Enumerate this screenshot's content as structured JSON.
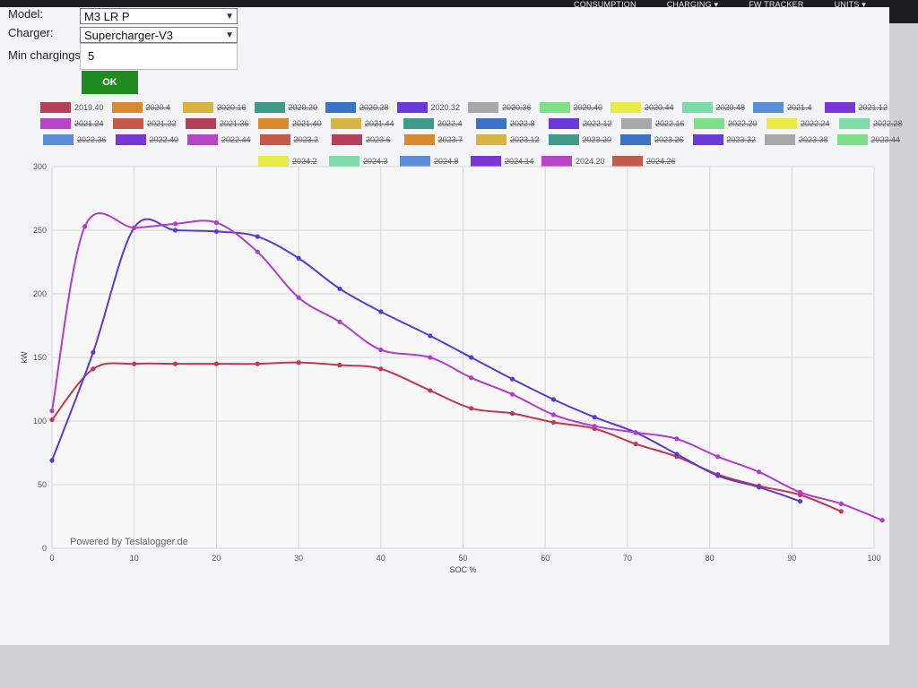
{
  "nav": [
    "CONSUMPTION",
    "CHARGING ▾",
    "FW TRACKER",
    "UNITS ▾"
  ],
  "form": {
    "model_label": "Model:",
    "model_value": "M3 LR P",
    "charger_label": "Charger:",
    "charger_value": "Supercharger-V3",
    "min_label": "Min chargings",
    "min_value": "5",
    "ok_label": "OK"
  },
  "legend": [
    {
      "label": "2019.40",
      "color": "#b5405a",
      "on": true
    },
    {
      "label": "2020.4",
      "color": "#d98a2e",
      "on": false
    },
    {
      "label": "2020.16",
      "color": "#d8b440",
      "on": false
    },
    {
      "label": "2020.20",
      "color": "#3f9a8a",
      "on": false
    },
    {
      "label": "2020.28",
      "color": "#3d73c4",
      "on": false
    },
    {
      "label": "2020.32",
      "color": "#6a3ad8",
      "on": true
    },
    {
      "label": "2020.36",
      "color": "#a8a8a8",
      "on": false
    },
    {
      "label": "2020.40",
      "color": "#7fe08a",
      "on": false
    },
    {
      "label": "2020.44",
      "color": "#eaea45",
      "on": false
    },
    {
      "label": "2020.48",
      "color": "#7ddca8",
      "on": false
    },
    {
      "label": "2021.4",
      "color": "#5a8ed8",
      "on": false
    },
    {
      "label": "2021.12",
      "color": "#7a35d8",
      "on": false
    },
    {
      "label": "2021.24",
      "color": "#b845c8",
      "on": false
    },
    {
      "label": "2021.32",
      "color": "#c65a4a",
      "on": false
    },
    {
      "label": "2021.36",
      "color": "#b5405a",
      "on": false
    },
    {
      "label": "2021.40",
      "color": "#d98a2e",
      "on": false
    },
    {
      "label": "2021.44",
      "color": "#d8b440",
      "on": false
    },
    {
      "label": "2022.4",
      "color": "#3f9a8a",
      "on": false
    },
    {
      "label": "2022.8",
      "color": "#3d73c4",
      "on": false
    },
    {
      "label": "2022.12",
      "color": "#6a3ad8",
      "on": false
    },
    {
      "label": "2022.16",
      "color": "#a8a8a8",
      "on": false
    },
    {
      "label": "2022.20",
      "color": "#7fe08a",
      "on": false
    },
    {
      "label": "2022.24",
      "color": "#eaea45",
      "on": false
    },
    {
      "label": "2022.28",
      "color": "#7ddca8",
      "on": false
    },
    {
      "label": "2022.36",
      "color": "#5a8ed8",
      "on": false
    },
    {
      "label": "2022.40",
      "color": "#7a35d8",
      "on": false
    },
    {
      "label": "2022.44",
      "color": "#b845c8",
      "on": false
    },
    {
      "label": "2023.2",
      "color": "#c65a4a",
      "on": false
    },
    {
      "label": "2023.6",
      "color": "#b5405a",
      "on": false
    },
    {
      "label": "2023.7",
      "color": "#d98a2e",
      "on": false
    },
    {
      "label": "2023.12",
      "color": "#d8b440",
      "on": false
    },
    {
      "label": "2023.20",
      "color": "#3f9a8a",
      "on": false
    },
    {
      "label": "2023.26",
      "color": "#3d73c4",
      "on": false
    },
    {
      "label": "2023.32",
      "color": "#6a3ad8",
      "on": false
    },
    {
      "label": "2023.38",
      "color": "#a8a8a8",
      "on": false
    },
    {
      "label": "2023.44",
      "color": "#7fe08a",
      "on": false
    },
    {
      "label": "2024.2",
      "color": "#eaea45",
      "on": false
    },
    {
      "label": "2024.3",
      "color": "#7ddca8",
      "on": false
    },
    {
      "label": "2024.8",
      "color": "#5a8ed8",
      "on": false
    },
    {
      "label": "2024.14",
      "color": "#7a35d8",
      "on": false
    },
    {
      "label": "2024.20",
      "color": "#b845c8",
      "on": true
    },
    {
      "label": "2024.26",
      "color": "#c65a4a",
      "on": false
    }
  ],
  "watermark": "Powered by Teslalogger.de",
  "chart_data": {
    "type": "line",
    "xlabel": "SOC %",
    "ylabel": "kW",
    "xlim": [
      0,
      100
    ],
    "ylim": [
      0,
      300
    ],
    "xticks": [
      0,
      10,
      20,
      30,
      40,
      50,
      60,
      70,
      80,
      90,
      100
    ],
    "yticks": [
      0,
      50,
      100,
      150,
      200,
      250,
      300
    ],
    "grid": true,
    "series": [
      {
        "name": "2019.40",
        "color": "#c0394f",
        "points": [
          [
            0,
            101
          ],
          [
            5,
            141
          ],
          [
            10,
            145
          ],
          [
            15,
            145
          ],
          [
            20,
            145
          ],
          [
            25,
            145
          ],
          [
            30,
            146
          ],
          [
            35,
            144
          ],
          [
            40,
            141
          ],
          [
            46,
            124
          ],
          [
            51,
            110
          ],
          [
            56,
            106
          ],
          [
            61,
            99
          ],
          [
            66,
            94
          ],
          [
            71,
            82
          ],
          [
            76,
            72
          ],
          [
            81,
            58
          ],
          [
            86,
            49
          ],
          [
            91,
            42
          ],
          [
            96,
            29
          ]
        ]
      },
      {
        "name": "2020.32",
        "color": "#5b3ad0",
        "points": [
          [
            0,
            69
          ],
          [
            5,
            154
          ],
          [
            10,
            252
          ],
          [
            15,
            250
          ],
          [
            20,
            249
          ],
          [
            25,
            245
          ],
          [
            30,
            228
          ],
          [
            35,
            204
          ],
          [
            40,
            186
          ],
          [
            46,
            167
          ],
          [
            51,
            150
          ],
          [
            56,
            133
          ],
          [
            61,
            117
          ],
          [
            66,
            103
          ],
          [
            71,
            91
          ],
          [
            76,
            74
          ],
          [
            81,
            57
          ],
          [
            86,
            48
          ],
          [
            91,
            37
          ]
        ]
      },
      {
        "name": "2024.20",
        "color": "#b23ccc",
        "points": [
          [
            0,
            108
          ],
          [
            4,
            253
          ],
          [
            10,
            252
          ],
          [
            15,
            255
          ],
          [
            20,
            256
          ],
          [
            25,
            233
          ],
          [
            30,
            197
          ],
          [
            35,
            178
          ],
          [
            40,
            156
          ],
          [
            46,
            150
          ],
          [
            51,
            134
          ],
          [
            56,
            121
          ],
          [
            61,
            105
          ],
          [
            66,
            96
          ],
          [
            71,
            91
          ],
          [
            76,
            86
          ],
          [
            81,
            72
          ],
          [
            86,
            60
          ],
          [
            91,
            44
          ],
          [
            96,
            35
          ],
          [
            101,
            22
          ]
        ]
      }
    ]
  }
}
